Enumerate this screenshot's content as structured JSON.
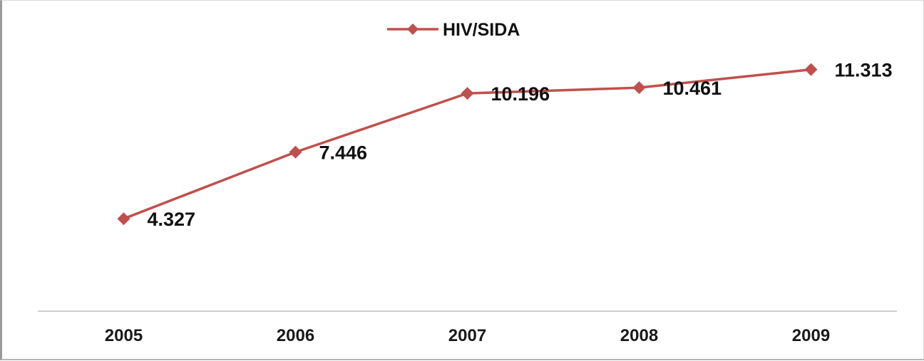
{
  "chart_data": {
    "type": "line",
    "categories": [
      "2005",
      "2006",
      "2007",
      "2008",
      "2009"
    ],
    "series": [
      {
        "name": "HIV/SIDA",
        "values": [
          4327,
          7446,
          10196,
          10461,
          11313
        ],
        "labels": [
          "4.327",
          "7.446",
          "10.196",
          "10.461",
          "11.313"
        ],
        "color": "#c0504d",
        "marker": "diamond"
      }
    ],
    "title": "",
    "xlabel": "",
    "ylabel": "",
    "ylim": [
      0,
      15000
    ],
    "grid": false,
    "legend": "top-center"
  }
}
